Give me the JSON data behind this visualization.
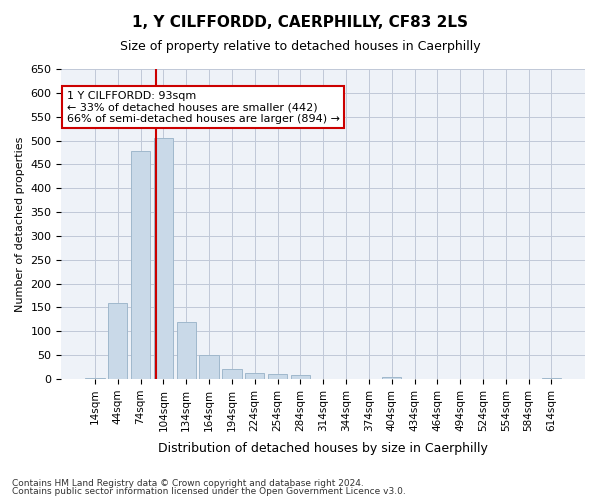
{
  "title": "1, Y CILFFORDD, CAERPHILLY, CF83 2LS",
  "subtitle": "Size of property relative to detached houses in Caerphilly",
  "xlabel": "Distribution of detached houses by size in Caerphilly",
  "ylabel": "Number of detached properties",
  "footnote1": "Contains HM Land Registry data © Crown copyright and database right 2024.",
  "footnote2": "Contains public sector information licensed under the Open Government Licence v3.0.",
  "bar_labels": [
    "14sqm",
    "44sqm",
    "74sqm",
    "104sqm",
    "134sqm",
    "164sqm",
    "194sqm",
    "224sqm",
    "254sqm",
    "284sqm",
    "314sqm",
    "344sqm",
    "374sqm",
    "404sqm",
    "434sqm",
    "464sqm",
    "494sqm",
    "524sqm",
    "554sqm",
    "584sqm",
    "614sqm"
  ],
  "bar_values": [
    2,
    160,
    478,
    505,
    120,
    50,
    22,
    12,
    10,
    8,
    0,
    0,
    0,
    5,
    0,
    0,
    0,
    0,
    0,
    0,
    2
  ],
  "bar_color": "#c9d9e8",
  "bar_edgecolor": "#a0b8cc",
  "grid_color": "#c0c8d8",
  "background_color": "#eef2f8",
  "vline_x": 2.67,
  "vline_color": "#cc0000",
  "annotation_text": "1 Y CILFFORDD: 93sqm\n← 33% of detached houses are smaller (442)\n66% of semi-detached houses are larger (894) →",
  "annotation_box_color": "#ffffff",
  "annotation_box_edgecolor": "#cc0000",
  "ylim": [
    0,
    650
  ],
  "yticks": [
    0,
    50,
    100,
    150,
    200,
    250,
    300,
    350,
    400,
    450,
    500,
    550,
    600,
    650
  ]
}
